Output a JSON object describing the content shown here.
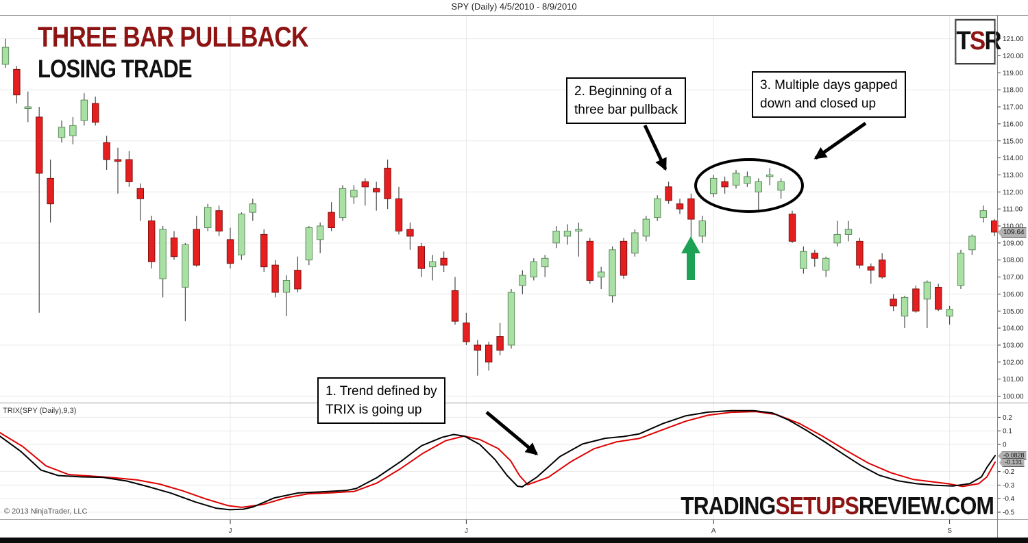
{
  "header": {
    "title": "SPY (Daily)  4/5/2010 - 8/9/2010"
  },
  "overlay": {
    "title_line1": "THREE BAR PULLBACK",
    "title_line2": "LOSING TRADE",
    "logo": {
      "t": "T",
      "s": "S",
      "r": "R"
    },
    "watermark": {
      "part1": "TRADING",
      "part2": "SETUPS",
      "part3": "REVIEW.COM"
    },
    "copyright": "© 2013 NinjaTrader, LLC"
  },
  "annotations": {
    "note1": {
      "line1": "1. Trend defined by",
      "line2": "TRIX is going up"
    },
    "note2": {
      "line1": "2. Beginning  of a",
      "line2": "three bar pullback"
    },
    "note3": {
      "line1": "3. Multiple  days gapped",
      "line2": "down and closed up"
    },
    "markers": [
      "ellipse-highlight-on-gapped-days",
      "green-up-arrow-at-pullback-low"
    ]
  },
  "colors": {
    "up_fill": "#a9e0a4",
    "up_stroke": "#5d8a5d",
    "down_fill": "#e51f1f",
    "down_stroke": "#7e1010",
    "wick": "#4a4a4a",
    "trix_line": "#000000",
    "trix_signal": "#dd0000",
    "accent_red": "#8e1414",
    "badge_bg": "#b2b2b2",
    "arrow_black": "#000000",
    "arrow_green": "#1da155",
    "grid": "#e9e9e9"
  },
  "chart_data": [
    {
      "type": "candlestick",
      "title": "SPY (Daily)  4/5/2010 - 8/9/2010",
      "price_axis": {
        "min": 100,
        "max": 121,
        "tick_step": 1,
        "ticks": [
          "121.00",
          "120.00",
          "119.00",
          "118.00",
          "117.00",
          "116.00",
          "115.00",
          "114.00",
          "113.00",
          "112.00",
          "111.00",
          "110.00",
          "109.00",
          "108.00",
          "107.00",
          "106.00",
          "105.00",
          "104.00",
          "103.00",
          "102.00",
          "101.00",
          "100.00"
        ],
        "gridline_values": [
          121,
          118,
          115,
          112,
          109,
          106,
          103,
          100
        ]
      },
      "last_price_badge": "109.64",
      "x_axis": {
        "labels": [
          "J",
          "J",
          "A",
          "S"
        ],
        "tick_indices": [
          20,
          41,
          63,
          84
        ]
      },
      "legend_position": "none",
      "grid": true,
      "candles_format": "[open, high, low, close]",
      "candles": [
        [
          119.5,
          121.0,
          119.3,
          120.5
        ],
        [
          119.2,
          119.4,
          117.2,
          117.7
        ],
        [
          116.9,
          117.9,
          116.1,
          117.0
        ],
        [
          116.4,
          117.0,
          104.9,
          113.1
        ],
        [
          112.8,
          113.9,
          110.2,
          111.3
        ],
        [
          115.2,
          116.2,
          114.9,
          115.8
        ],
        [
          115.3,
          116.4,
          114.8,
          115.9
        ],
        [
          116.2,
          117.8,
          115.9,
          117.4
        ],
        [
          117.2,
          117.6,
          115.9,
          116.1
        ],
        [
          114.9,
          115.3,
          113.3,
          113.9
        ],
        [
          113.9,
          114.6,
          111.9,
          113.8
        ],
        [
          113.9,
          114.4,
          112.3,
          112.6
        ],
        [
          112.2,
          112.5,
          110.3,
          111.6
        ],
        [
          110.3,
          110.6,
          107.5,
          107.9
        ],
        [
          106.9,
          110.0,
          105.8,
          109.8
        ],
        [
          109.3,
          109.7,
          108.0,
          108.2
        ],
        [
          106.4,
          109.0,
          104.4,
          108.9
        ],
        [
          109.8,
          110.6,
          107.6,
          107.7
        ],
        [
          109.9,
          111.3,
          109.7,
          111.1
        ],
        [
          110.9,
          111.2,
          109.4,
          109.7
        ],
        [
          109.2,
          109.9,
          107.5,
          107.8
        ],
        [
          108.3,
          110.8,
          108.0,
          110.7
        ],
        [
          110.8,
          111.6,
          110.3,
          111.3
        ],
        [
          109.5,
          109.8,
          107.3,
          107.6
        ],
        [
          107.7,
          108.0,
          105.8,
          106.1
        ],
        [
          106.1,
          107.1,
          104.7,
          106.8
        ],
        [
          107.4,
          108.2,
          106.1,
          106.3
        ],
        [
          108.0,
          110.0,
          107.7,
          109.9
        ],
        [
          109.2,
          110.2,
          108.4,
          110.0
        ],
        [
          110.8,
          111.4,
          109.7,
          109.9
        ],
        [
          110.5,
          112.4,
          110.3,
          112.2
        ],
        [
          111.7,
          112.4,
          111.3,
          112.1
        ],
        [
          112.6,
          112.8,
          111.2,
          112.3
        ],
        [
          112.2,
          112.6,
          110.9,
          112.0
        ],
        [
          113.4,
          113.9,
          111.0,
          111.6
        ],
        [
          111.6,
          112.3,
          109.5,
          109.7
        ],
        [
          109.8,
          110.2,
          108.6,
          109.4
        ],
        [
          108.8,
          109.0,
          107.0,
          107.5
        ],
        [
          107.6,
          108.3,
          106.8,
          107.9
        ],
        [
          108.1,
          108.5,
          107.3,
          107.7
        ],
        [
          106.2,
          107.0,
          104.2,
          104.4
        ],
        [
          104.3,
          104.9,
          103.0,
          103.2
        ],
        [
          103.0,
          103.3,
          101.2,
          102.7
        ],
        [
          103.0,
          103.2,
          101.5,
          102.0
        ],
        [
          103.5,
          104.3,
          102.4,
          102.7
        ],
        [
          103.0,
          106.3,
          102.8,
          106.1
        ],
        [
          106.5,
          107.4,
          106.0,
          107.1
        ],
        [
          107.0,
          108.1,
          106.8,
          107.9
        ],
        [
          107.6,
          108.3,
          107.0,
          108.1
        ],
        [
          109.0,
          110.0,
          108.7,
          109.7
        ],
        [
          109.4,
          110.1,
          108.9,
          109.7
        ],
        [
          109.7,
          110.2,
          108.2,
          109.8
        ],
        [
          109.1,
          109.3,
          106.6,
          106.8
        ],
        [
          107.0,
          107.6,
          106.3,
          107.3
        ],
        [
          105.9,
          108.8,
          105.5,
          108.6
        ],
        [
          109.1,
          109.3,
          106.9,
          107.1
        ],
        [
          108.4,
          109.8,
          108.2,
          109.6
        ],
        [
          109.4,
          110.6,
          109.1,
          110.4
        ],
        [
          110.5,
          111.8,
          110.3,
          111.6
        ],
        [
          112.3,
          112.6,
          111.3,
          111.5
        ],
        [
          111.3,
          111.6,
          110.7,
          111.0
        ],
        [
          111.6,
          111.9,
          109.3,
          110.4
        ],
        [
          109.4,
          110.6,
          109.0,
          110.3
        ],
        [
          111.9,
          113.0,
          111.7,
          112.8
        ],
        [
          112.6,
          112.9,
          111.9,
          112.3
        ],
        [
          112.4,
          113.3,
          112.2,
          113.1
        ],
        [
          112.5,
          113.2,
          112.3,
          112.9
        ],
        [
          112.0,
          112.8,
          110.9,
          112.6
        ],
        [
          112.9,
          113.4,
          112.4,
          113.0
        ],
        [
          112.1,
          112.8,
          111.6,
          112.6
        ],
        [
          110.7,
          110.9,
          109.0,
          109.1
        ],
        [
          107.5,
          108.8,
          107.2,
          108.5
        ],
        [
          108.4,
          108.6,
          107.6,
          108.1
        ],
        [
          107.4,
          108.2,
          107.0,
          108.1
        ],
        [
          109.0,
          110.3,
          108.8,
          109.5
        ],
        [
          109.5,
          110.3,
          109.1,
          109.8
        ],
        [
          109.1,
          109.3,
          107.5,
          107.7
        ],
        [
          107.6,
          107.8,
          106.6,
          107.4
        ],
        [
          108.0,
          108.4,
          106.9,
          107.0
        ],
        [
          105.7,
          106.0,
          105.0,
          105.3
        ],
        [
          104.7,
          105.9,
          104.0,
          105.8
        ],
        [
          106.3,
          106.5,
          104.9,
          105.0
        ],
        [
          105.7,
          106.8,
          104.0,
          106.7
        ],
        [
          106.4,
          106.6,
          105.0,
          105.1
        ],
        [
          104.7,
          105.3,
          104.2,
          105.1
        ],
        [
          106.5,
          108.6,
          106.3,
          108.4
        ],
        [
          108.6,
          109.5,
          108.3,
          109.4
        ],
        [
          110.5,
          111.2,
          110.2,
          110.9
        ],
        [
          110.3,
          110.4,
          109.4,
          109.64
        ]
      ]
    },
    {
      "type": "line",
      "title": "TRIX(SPY (Daily),9,3)",
      "y_axis": {
        "ticks": [
          "0.2",
          "0.1",
          "0",
          "-0.2",
          "-0.3",
          "-0.4",
          "-0.5"
        ],
        "values": [
          0.2,
          0.1,
          0,
          -0.2,
          -0.3,
          -0.4,
          -0.5
        ]
      },
      "value_badges": [
        "-0.0828",
        "-0.131"
      ],
      "series": [
        {
          "name": "TRIX",
          "color": "#000000",
          "points": [
            [
              0,
              0.06
            ],
            [
              30,
              -0.05
            ],
            [
              60,
              -0.19
            ],
            [
              85,
              -0.23
            ],
            [
              120,
              -0.24
            ],
            [
              150,
              -0.243
            ],
            [
              185,
              -0.27
            ],
            [
              215,
              -0.31
            ],
            [
              250,
              -0.36
            ],
            [
              285,
              -0.425
            ],
            [
              315,
              -0.47
            ],
            [
              335,
              -0.482
            ],
            [
              355,
              -0.478
            ],
            [
              370,
              -0.46
            ],
            [
              400,
              -0.395
            ],
            [
              435,
              -0.358
            ],
            [
              470,
              -0.35
            ],
            [
              505,
              -0.34
            ],
            [
              520,
              -0.325
            ],
            [
              550,
              -0.245
            ],
            [
              585,
              -0.125
            ],
            [
              615,
              -0.01
            ],
            [
              645,
              0.052
            ],
            [
              662,
              0.073
            ],
            [
              678,
              0.06
            ],
            [
              700,
              0.0
            ],
            [
              722,
              -0.11
            ],
            [
              740,
              -0.23
            ],
            [
              755,
              -0.308
            ],
            [
              762,
              -0.313
            ],
            [
              783,
              -0.243
            ],
            [
              817,
              -0.09
            ],
            [
              850,
              0.003
            ],
            [
              883,
              0.045
            ],
            [
              910,
              0.058
            ],
            [
              933,
              0.078
            ],
            [
              967,
              0.153
            ],
            [
              1000,
              0.21
            ],
            [
              1033,
              0.238
            ],
            [
              1067,
              0.249
            ],
            [
              1100,
              0.249
            ],
            [
              1127,
              0.232
            ],
            [
              1150,
              0.182
            ],
            [
              1177,
              0.103
            ],
            [
              1203,
              0.02
            ],
            [
              1230,
              -0.07
            ],
            [
              1257,
              -0.158
            ],
            [
              1283,
              -0.228
            ],
            [
              1310,
              -0.268
            ],
            [
              1337,
              -0.29
            ],
            [
              1363,
              -0.301
            ],
            [
              1390,
              -0.307
            ],
            [
              1415,
              -0.29
            ],
            [
              1432,
              -0.24
            ],
            [
              1440,
              -0.17
            ],
            [
              1452,
              -0.0828
            ]
          ]
        },
        {
          "name": "TRIX signal",
          "color": "#dd0000",
          "points": [
            [
              0,
              0.086
            ],
            [
              33,
              -0.015
            ],
            [
              67,
              -0.158
            ],
            [
              100,
              -0.222
            ],
            [
              133,
              -0.234
            ],
            [
              167,
              -0.246
            ],
            [
              200,
              -0.262
            ],
            [
              233,
              -0.293
            ],
            [
              267,
              -0.343
            ],
            [
              300,
              -0.402
            ],
            [
              333,
              -0.452
            ],
            [
              353,
              -0.464
            ],
            [
              383,
              -0.444
            ],
            [
              417,
              -0.394
            ],
            [
              450,
              -0.364
            ],
            [
              483,
              -0.357
            ],
            [
              517,
              -0.347
            ],
            [
              550,
              -0.285
            ],
            [
              583,
              -0.184
            ],
            [
              617,
              -0.066
            ],
            [
              650,
              0.027
            ],
            [
              677,
              0.061
            ],
            [
              700,
              0.036
            ],
            [
              727,
              -0.031
            ],
            [
              745,
              -0.12
            ],
            [
              758,
              -0.23
            ],
            [
              770,
              -0.297
            ],
            [
              800,
              -0.243
            ],
            [
              833,
              -0.128
            ],
            [
              867,
              -0.032
            ],
            [
              900,
              0.019
            ],
            [
              933,
              0.044
            ],
            [
              967,
              0.108
            ],
            [
              1000,
              0.17
            ],
            [
              1033,
              0.215
            ],
            [
              1067,
              0.237
            ],
            [
              1103,
              0.242
            ],
            [
              1133,
              0.22
            ],
            [
              1167,
              0.153
            ],
            [
              1200,
              0.061
            ],
            [
              1233,
              -0.04
            ],
            [
              1267,
              -0.138
            ],
            [
              1300,
              -0.209
            ],
            [
              1333,
              -0.259
            ],
            [
              1383,
              -0.29
            ],
            [
              1405,
              -0.31
            ],
            [
              1428,
              -0.29
            ],
            [
              1440,
              -0.24
            ],
            [
              1452,
              -0.131
            ]
          ]
        }
      ]
    }
  ]
}
